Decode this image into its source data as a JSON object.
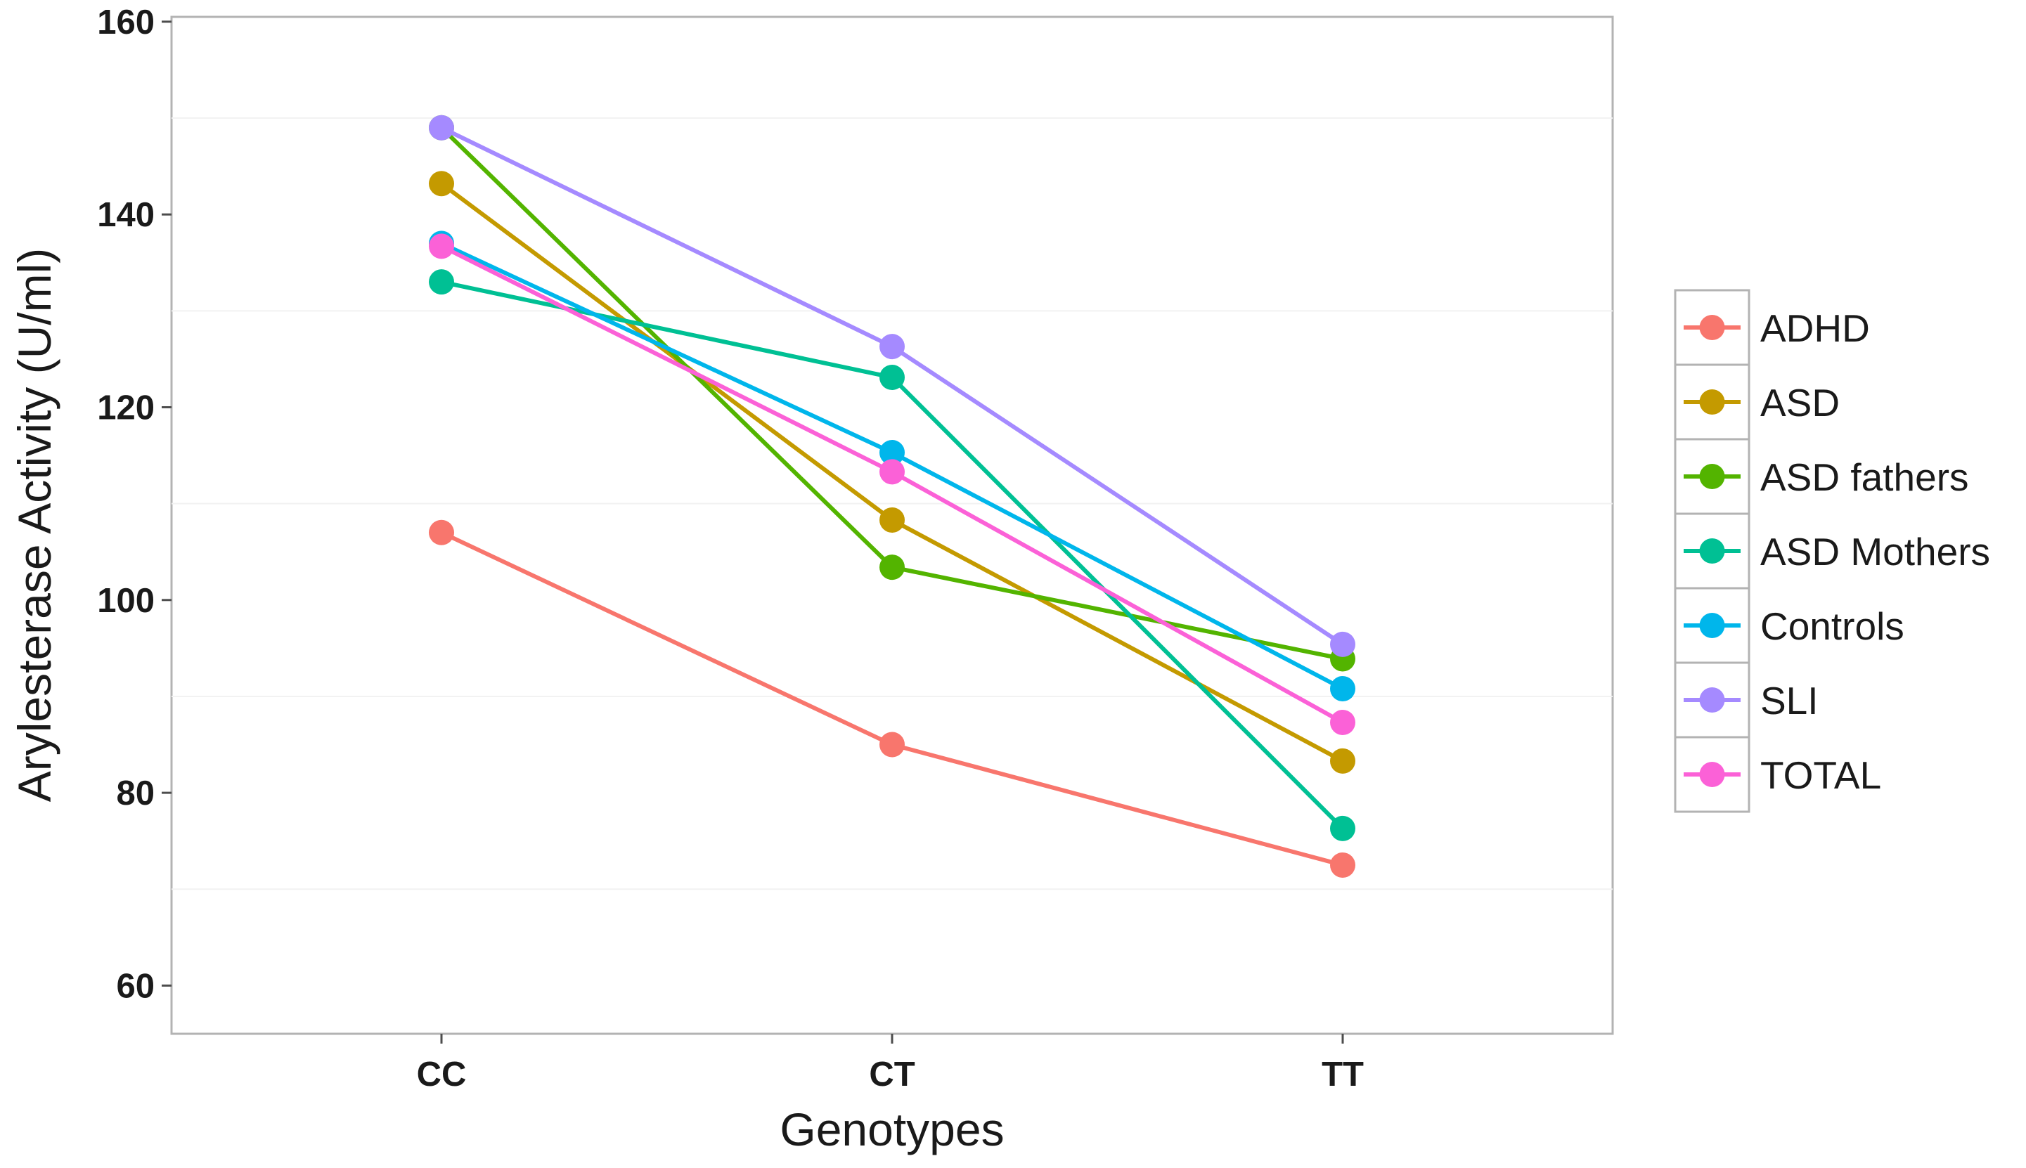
{
  "chart_data": {
    "type": "line",
    "title": "",
    "xlabel": "Genotypes",
    "ylabel": "Arylesterase Activity (U/ml)",
    "categories": [
      "CC",
      "CT",
      "TT"
    ],
    "ylim": [
      55,
      160.5
    ],
    "yticks": [
      60,
      80,
      100,
      120,
      140,
      160
    ],
    "grid": true,
    "legend_position": "right",
    "series": [
      {
        "name": "ADHD",
        "color": "#F8766D",
        "values": [
          107,
          85,
          72.5
        ]
      },
      {
        "name": "ASD",
        "color": "#C49A00",
        "values": [
          143.2,
          108.3,
          83.3
        ]
      },
      {
        "name": "ASD fathers",
        "color": "#53B400",
        "values": [
          149,
          103.4,
          93.9
        ]
      },
      {
        "name": "ASD Mothers",
        "color": "#00C094",
        "values": [
          133,
          123.1,
          76.3
        ]
      },
      {
        "name": "Controls",
        "color": "#00B6EB",
        "values": [
          137,
          115.3,
          90.8
        ]
      },
      {
        "name": "SLI",
        "color": "#A58AFF",
        "values": [
          149,
          126.3,
          95.4
        ]
      },
      {
        "name": "TOTAL",
        "color": "#FB61D7",
        "values": [
          136.7,
          113.3,
          87.3
        ]
      }
    ]
  }
}
